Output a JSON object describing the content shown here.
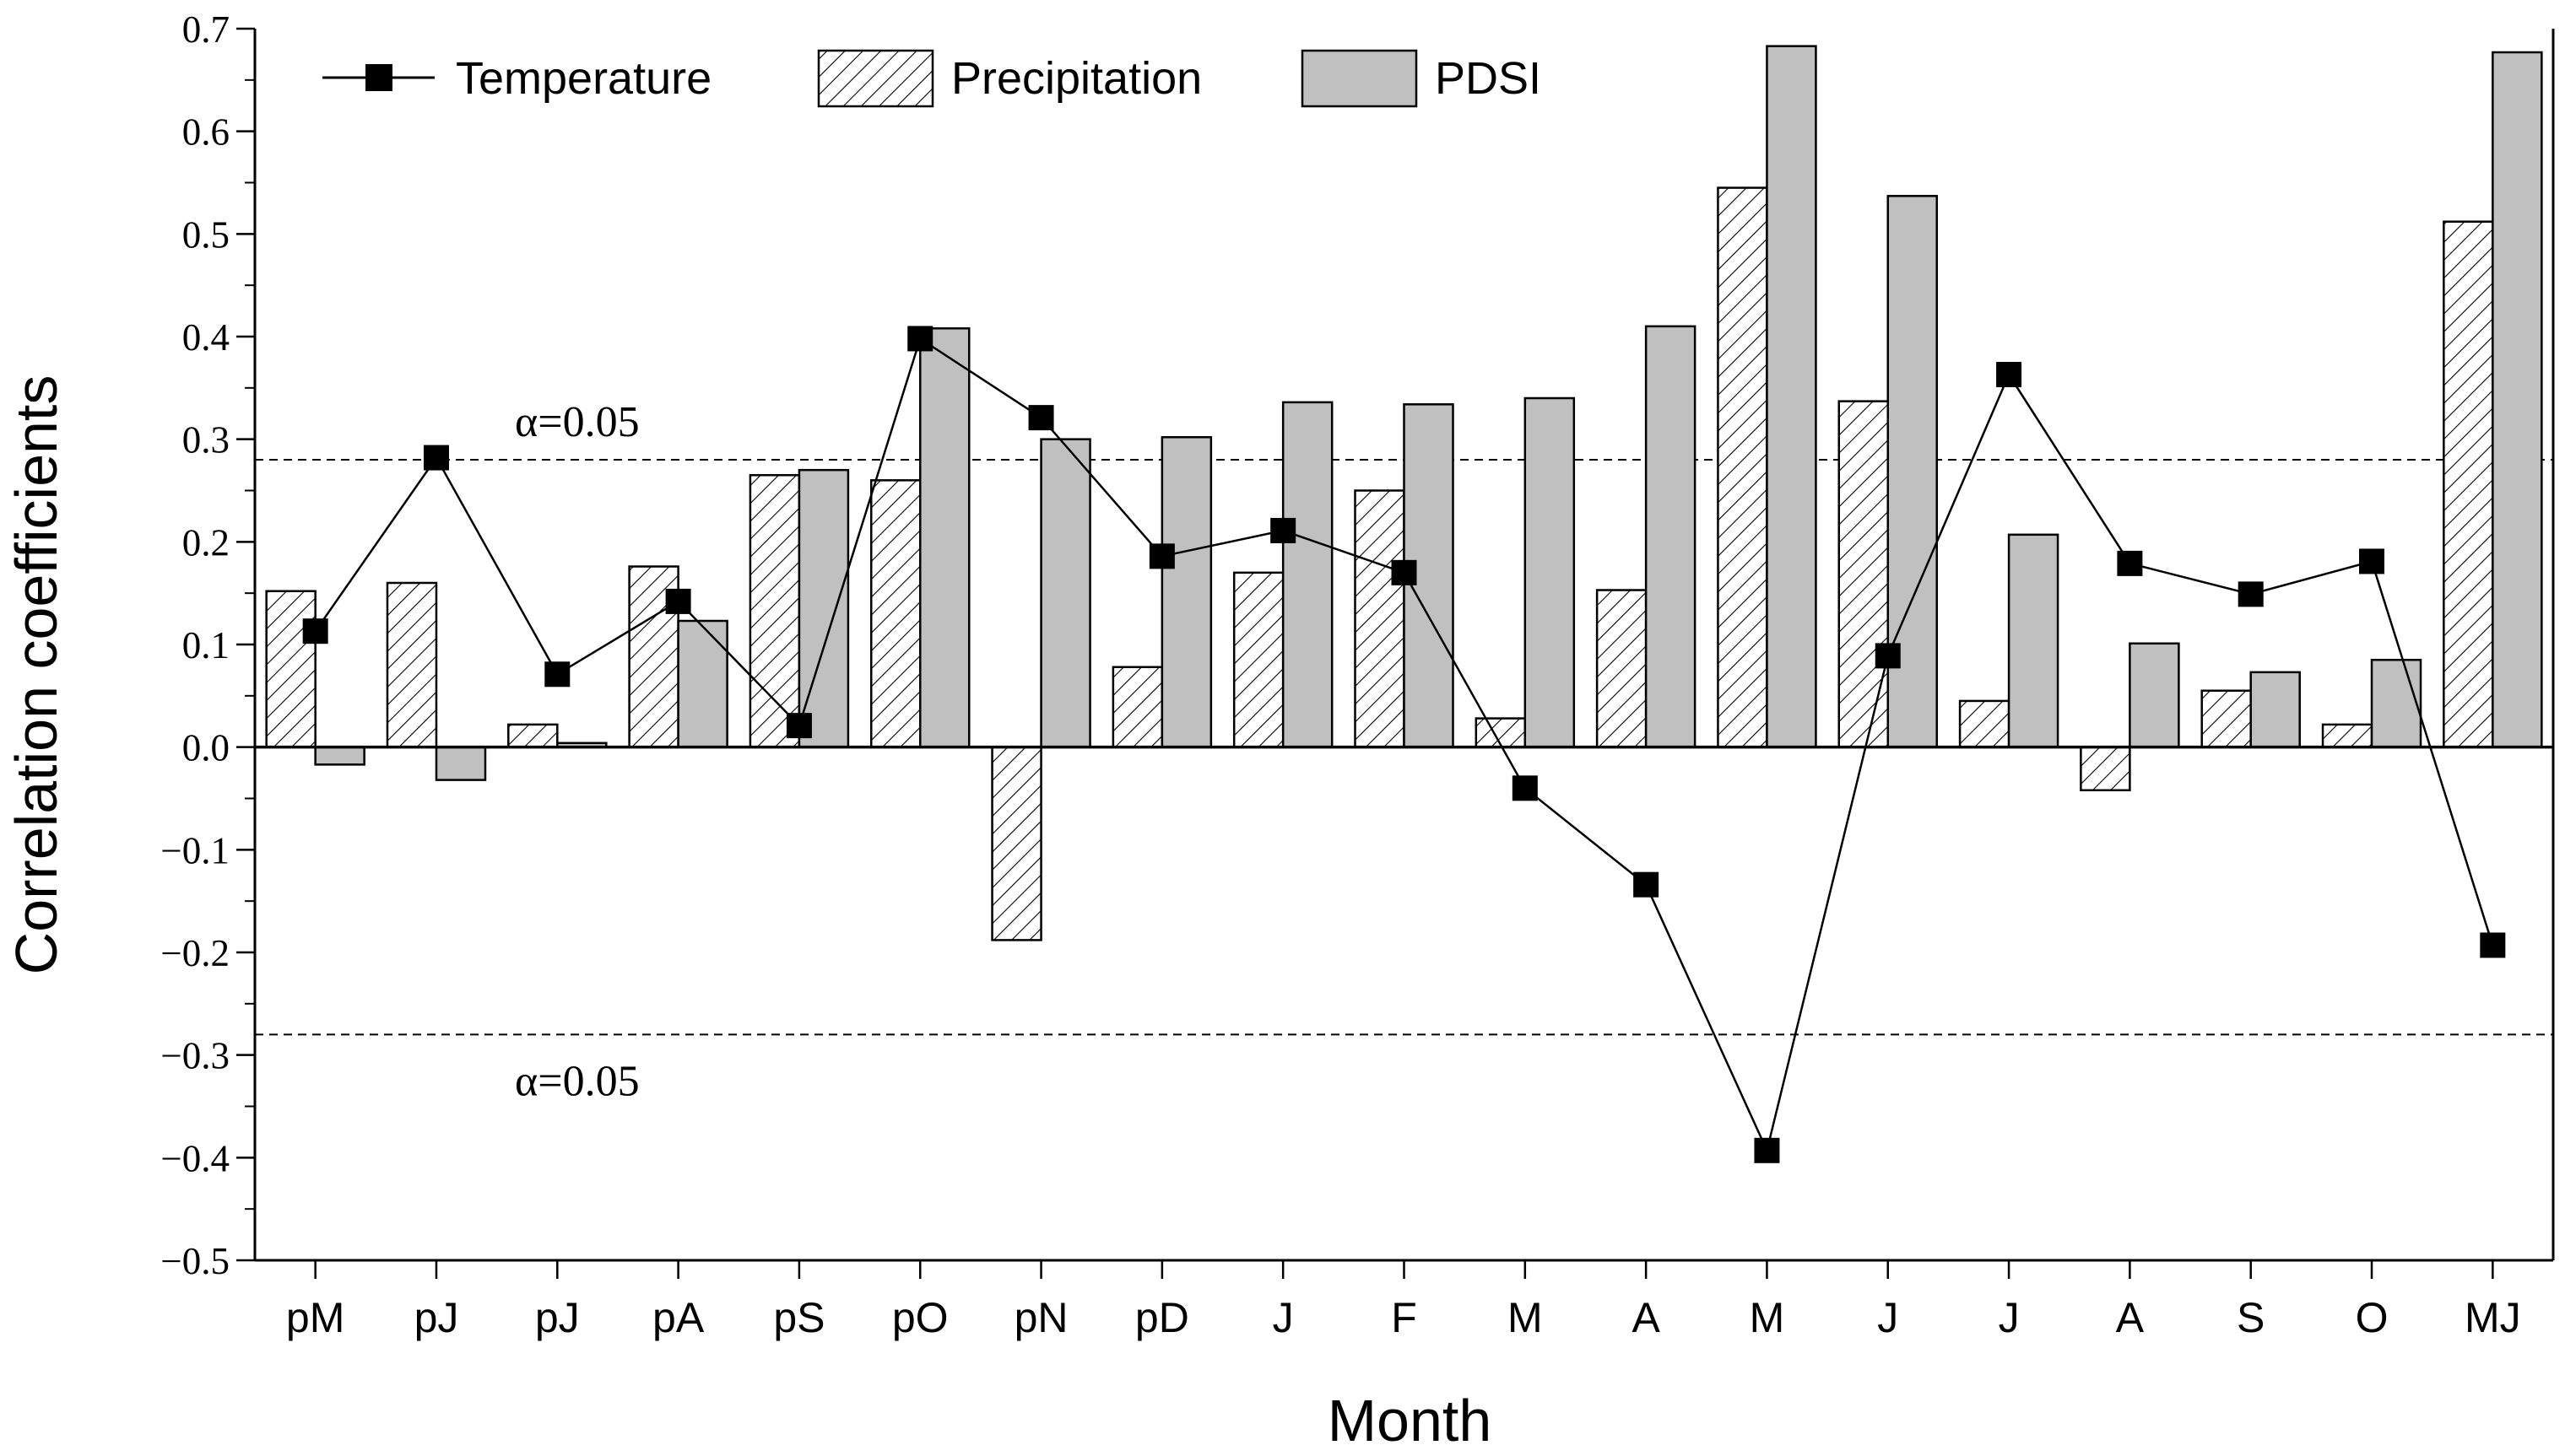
{
  "chart_data": {
    "type": "bar",
    "title": "",
    "xlabel": "Month",
    "ylabel": "Correlation coefficients",
    "ylim": [
      -0.5,
      0.7
    ],
    "ytick_step": 0.1,
    "yticks": [
      "0.7",
      "0.6",
      "0.5",
      "0.4",
      "0.3",
      "0.2",
      "0.1",
      "0.0",
      "−0.1",
      "−0.2",
      "−0.3",
      "−0.4",
      "−0.5"
    ],
    "categories": [
      "pM",
      "pJ",
      "pJ",
      "pA",
      "pS",
      "pO",
      "pN",
      "pD",
      "J",
      "F",
      "M",
      "A",
      "M",
      "J",
      "J",
      "A",
      "S",
      "O",
      "MJ"
    ],
    "series": [
      {
        "name": "Precipitation",
        "kind": "bar",
        "pattern": "hatched",
        "values": [
          0.152,
          0.16,
          0.022,
          0.176,
          0.265,
          0.26,
          -0.188,
          0.078,
          0.17,
          0.25,
          0.028,
          0.153,
          0.545,
          0.337,
          0.045,
          -0.042,
          0.055,
          0.022,
          0.512
        ]
      },
      {
        "name": "PDSI",
        "kind": "bar",
        "color": "#c0c0c0",
        "values": [
          -0.017,
          -0.032,
          0.004,
          0.123,
          0.27,
          0.408,
          0.3,
          0.302,
          0.336,
          0.334,
          0.34,
          0.41,
          0.683,
          0.537,
          0.207,
          0.101,
          0.073,
          0.085,
          0.677
        ]
      },
      {
        "name": "Temperature",
        "kind": "line",
        "color": "#000000",
        "values": [
          0.113,
          0.282,
          0.071,
          0.142,
          0.021,
          0.398,
          0.321,
          0.186,
          0.211,
          0.17,
          -0.04,
          -0.134,
          -0.393,
          0.089,
          0.363,
          0.179,
          0.149,
          0.181,
          -0.193
        ]
      }
    ],
    "significance_lines": [
      {
        "value": 0.28,
        "label": "α=0.05"
      },
      {
        "value": -0.28,
        "label": "α=0.05"
      }
    ],
    "legend": {
      "placement": "top-left",
      "items": [
        "Temperature",
        "Precipitation",
        "PDSI"
      ]
    }
  }
}
